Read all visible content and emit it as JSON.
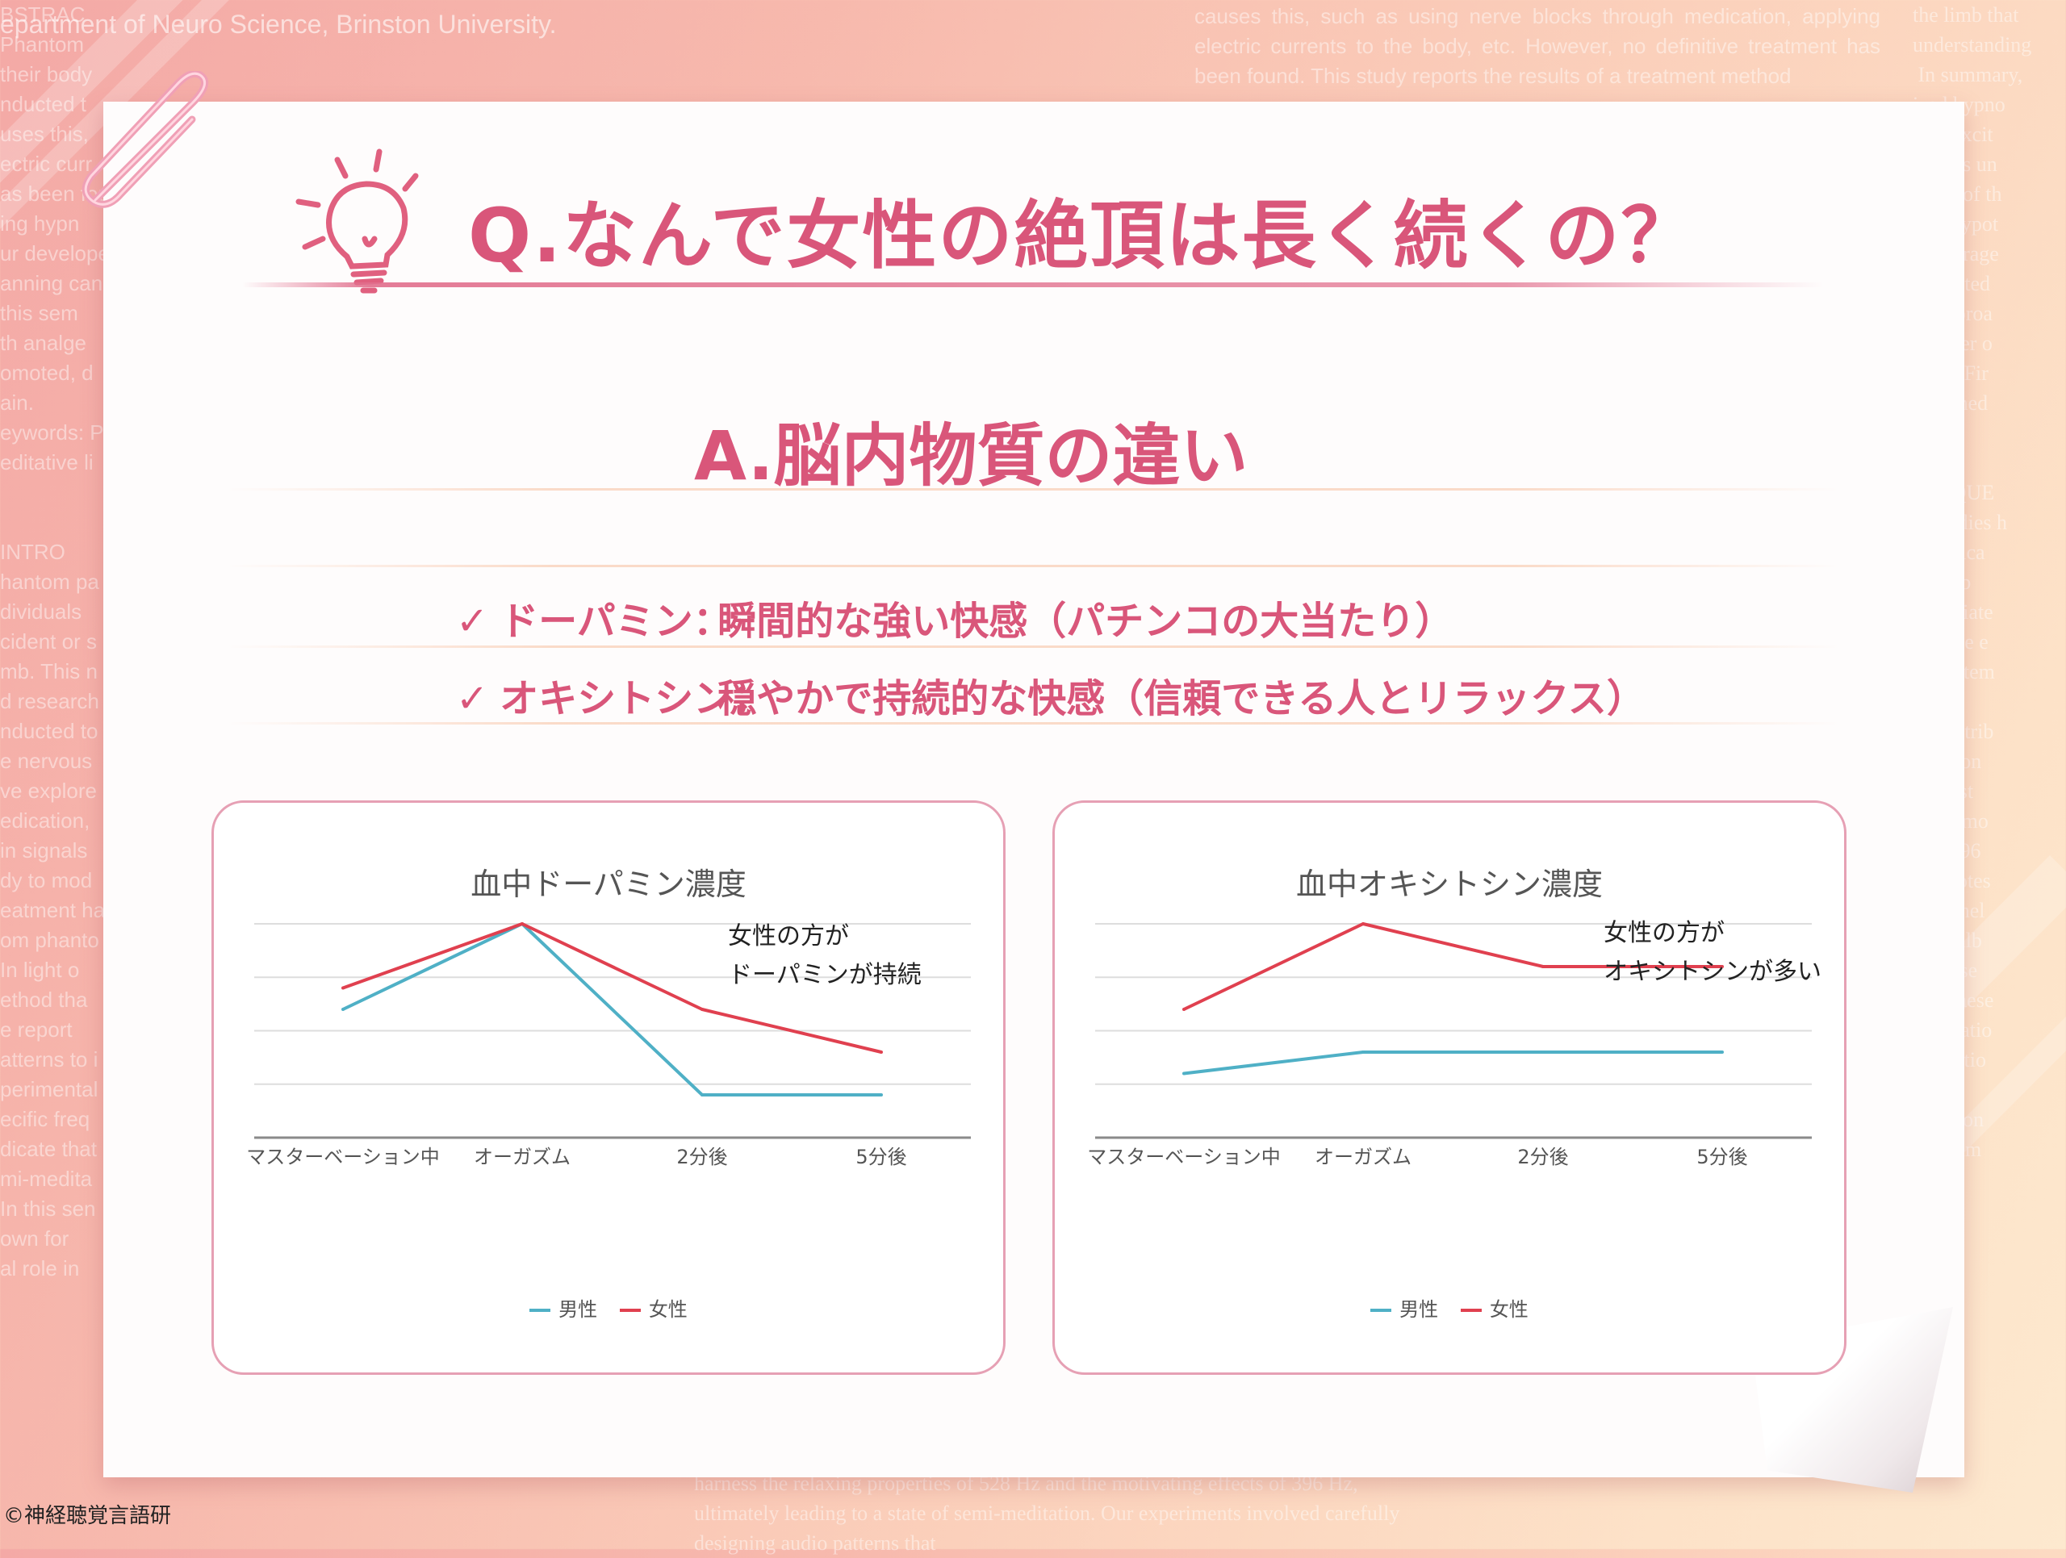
{
  "background": {
    "header": "epartment of Neuro Science, Brinston University.",
    "top_text": "causes this, such as using nerve blocks through medication, applying electric currents to the body, etc. However, no definitive treatment has been found. This study reports the results of a treatment method",
    "left_text": "BSTRAC\nPhantom\ntheir body\nnducted t\nuses this,\nectric curr\nas been fou\ning hypn\nur develope\nanning can\nthis sem\nth analge\nomoted, d\nain.\neywords: P\neditative li\n\n\nINTRO\nhantom pa\ndividuals\ncident or s\nmb. This n\nd research\nnducted to\ne nervous\nve explore\nedication,\nin signals\ndy to mod\neatment ha\nom phanto\nIn light o\nethod tha\ne report\natterns to i\nperimental\necific freq\ndicate that\nmi-medita\nIn this sen\nown for\nal role in",
    "right_text": "the limb that\nunderstanding\n In summary,\nized hypno\ns up excit\nanisms un\ne rest of th\nasic hypot\nencourage\nw related\nur approa\nnumber o\ntions. Fir\nis gained\n\n\nFREQUE\nw studies h\nsignifica\nce, sub\nnstantiate\nrify the e\nus system\nat this\nm contrib\naddition\nve in st\nHz is mo\nvon 396\npromotes\nad to hel\nof wellb\nin these\nting these\nmeditatio\nrelaxatio\nthe hu\nHz, alon\nexperim",
    "bottom_text": "harness the relaxing properties of 528 Hz and the motivating effects of 396 Hz, ultimately leading to a state of semi-meditation. Our experiments involved carefully designing audio patterns that"
  },
  "question": "Q.なんで女性の絶頂は長く続くの？",
  "answer": "A.脳内物質の違い",
  "points": [
    {
      "check": "✓",
      "term": "ドーパミン：",
      "desc": "瞬間的な強い快感（パチンコの大当たり）"
    },
    {
      "check": "✓",
      "term": "オキシトシン：",
      "desc": "穏やかで持続的な快感（信頼できる人とリラックス）"
    }
  ],
  "colors": {
    "accent": "#d9567a",
    "male": "#4fb0c6",
    "female": "#e0404f"
  },
  "chart_data": [
    {
      "type": "line",
      "title": "血中ドーパミン濃度",
      "categories": [
        "マスターベーション中",
        "オーガズム",
        "2分後",
        "5分後"
      ],
      "ylim": [
        0,
        100
      ],
      "series": [
        {
          "name": "男性",
          "values": [
            60,
            100,
            20,
            20
          ]
        },
        {
          "name": "女性",
          "values": [
            70,
            100,
            60,
            40
          ]
        }
      ],
      "annotation": [
        "女性の方が",
        "ドーパミンが持続"
      ],
      "legend": "bottom",
      "grid": true
    },
    {
      "type": "line",
      "title": "血中オキシトシン濃度",
      "categories": [
        "マスターベーション中",
        "オーガズム",
        "2分後",
        "5分後"
      ],
      "ylim": [
        0,
        100
      ],
      "series": [
        {
          "name": "男性",
          "values": [
            30,
            40,
            40,
            40
          ]
        },
        {
          "name": "女性",
          "values": [
            60,
            100,
            80,
            80
          ]
        }
      ],
      "annotation": [
        "女性の方が",
        "オキシトシンが多い"
      ],
      "legend": "bottom",
      "grid": true
    }
  ],
  "copyright": "©神経聴覚言語研"
}
